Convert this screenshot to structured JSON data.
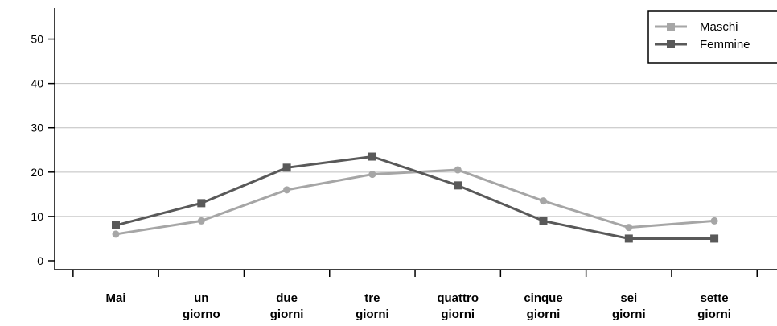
{
  "chart_data": {
    "type": "line",
    "categories": [
      [
        "Mai"
      ],
      [
        "un",
        "giorno"
      ],
      [
        "due",
        "giorni"
      ],
      [
        "tre",
        "giorni"
      ],
      [
        "quattro",
        "giorni"
      ],
      [
        "cinque",
        "giorni"
      ],
      [
        "sei",
        "giorni"
      ],
      [
        "sette",
        "giorni"
      ]
    ],
    "series": [
      {
        "name": "Maschi",
        "color": "#a6a6a6",
        "marker": "circle",
        "values": [
          6,
          9,
          16,
          19.5,
          20.5,
          13.5,
          7.5,
          9
        ]
      },
      {
        "name": "Femmine",
        "color": "#595959",
        "marker": "square",
        "values": [
          8,
          13,
          21,
          23.5,
          17,
          9,
          5,
          5
        ]
      }
    ],
    "yticks": [
      0,
      10,
      20,
      30,
      40,
      50
    ],
    "ylim": [
      -2,
      57
    ],
    "grid": true,
    "legend": "top-right"
  }
}
